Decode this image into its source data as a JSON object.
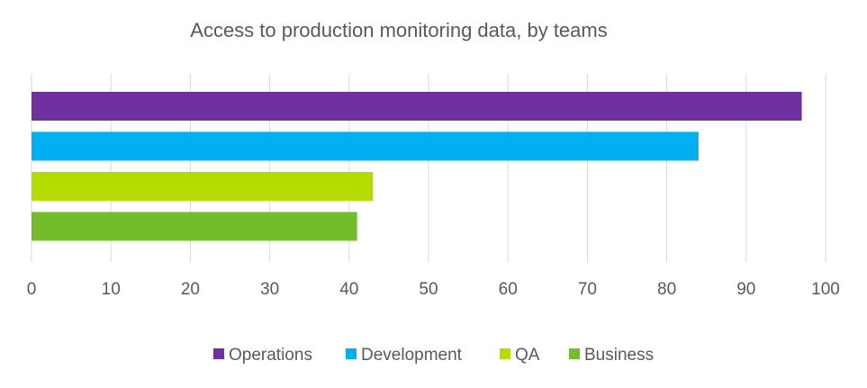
{
  "chart_data": {
    "type": "bar",
    "orientation": "horizontal",
    "title": "Access to production monitoring data, by teams",
    "xlabel": "",
    "ylabel": "",
    "xlim": [
      0,
      100
    ],
    "x_ticks": [
      "0",
      "10",
      "20",
      "30",
      "40",
      "50",
      "60",
      "70",
      "80",
      "90",
      "100"
    ],
    "grid": true,
    "legend_position": "bottom",
    "series": [
      {
        "name": "Operations",
        "value": 97,
        "color": "#7030a0"
      },
      {
        "name": "Development",
        "value": 84,
        "color": "#00b0f0"
      },
      {
        "name": "QA",
        "value": 43,
        "color": "#b4dc00"
      },
      {
        "name": "Business",
        "value": 41,
        "color": "#73bd2c"
      }
    ]
  }
}
